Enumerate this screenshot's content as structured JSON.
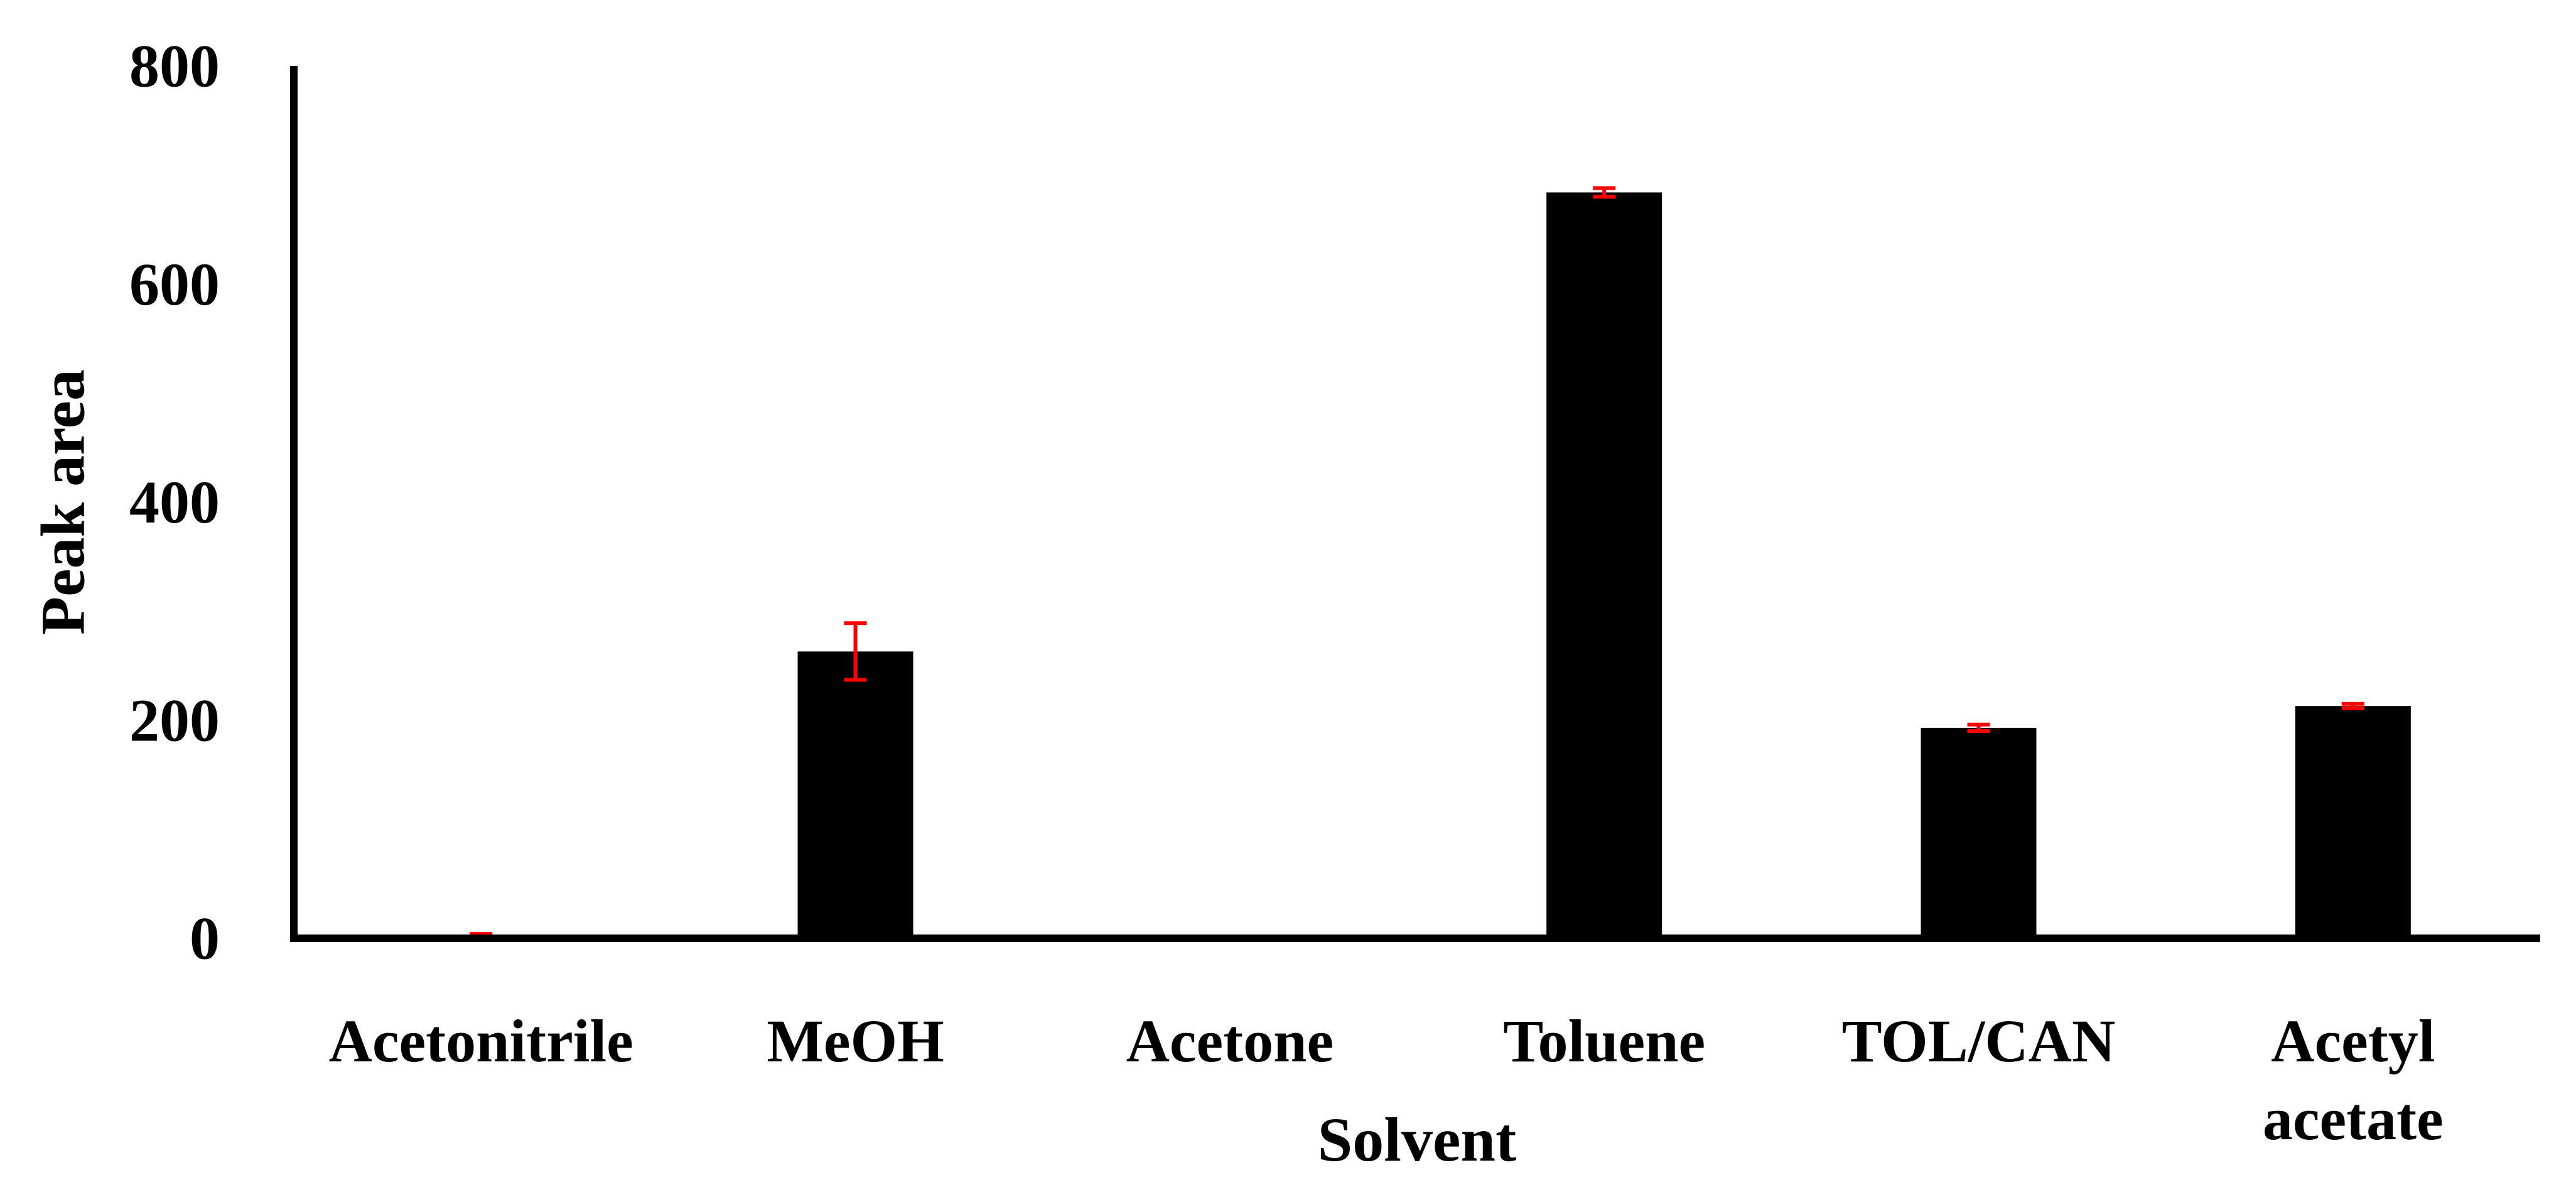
{
  "chart_data": {
    "type": "bar",
    "title": "",
    "xlabel": "Solvent",
    "ylabel": "Peak area",
    "categories": [
      "Acetonitrile",
      "MeOH",
      "Acetone",
      "Toluene",
      "TOL/CAN",
      "Acetyl acetate"
    ],
    "category_lines": [
      [
        "Acetonitrile"
      ],
      [
        "MeOH"
      ],
      [
        "Acetone"
      ],
      [
        "Toluene"
      ],
      [
        "TOL/CAN"
      ],
      [
        "Acetyl",
        "acetate"
      ]
    ],
    "values": [
      2,
      263,
      0,
      684,
      193,
      213
    ],
    "errors": [
      2,
      26,
      0,
      4,
      3,
      2
    ],
    "ylim": [
      0,
      800
    ],
    "yticks": [
      0,
      200,
      400,
      600,
      800
    ],
    "ytick_labels": [
      "0",
      "200",
      "400",
      "600",
      "800"
    ],
    "grid": false,
    "legend": "none",
    "colors": {
      "bar": "#000000",
      "error_bar": "#ff0000",
      "axis": "#000000",
      "text": "#000000"
    }
  }
}
